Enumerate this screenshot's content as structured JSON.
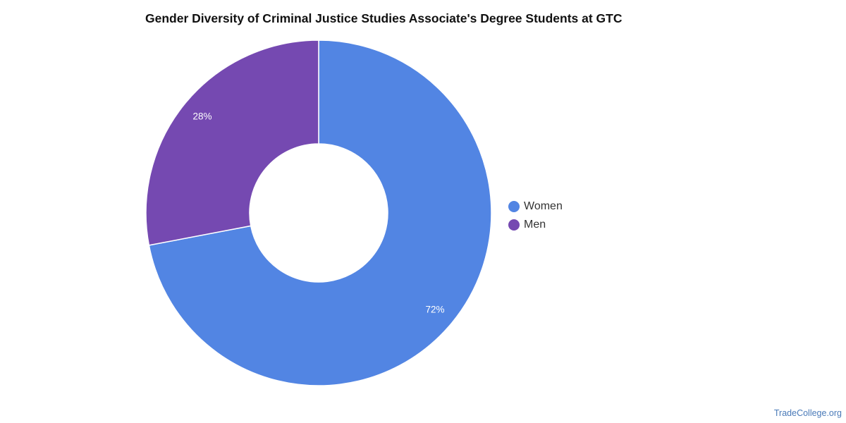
{
  "chart_data": {
    "type": "pie",
    "variant": "donut",
    "title": "Gender Diversity of Criminal Justice Studies Associate's Degree Students at GTC",
    "categories": [
      "Women",
      "Men"
    ],
    "values": [
      72,
      28
    ],
    "labels": [
      "72%",
      "28%"
    ],
    "colors": [
      "#5285e3",
      "#7549b1"
    ],
    "legend_position": "right"
  },
  "legend": {
    "items": [
      {
        "label": "Women",
        "color": "#5285e3"
      },
      {
        "label": "Men",
        "color": "#7549b1"
      }
    ]
  },
  "footer": {
    "source": "TradeCollege.org"
  }
}
